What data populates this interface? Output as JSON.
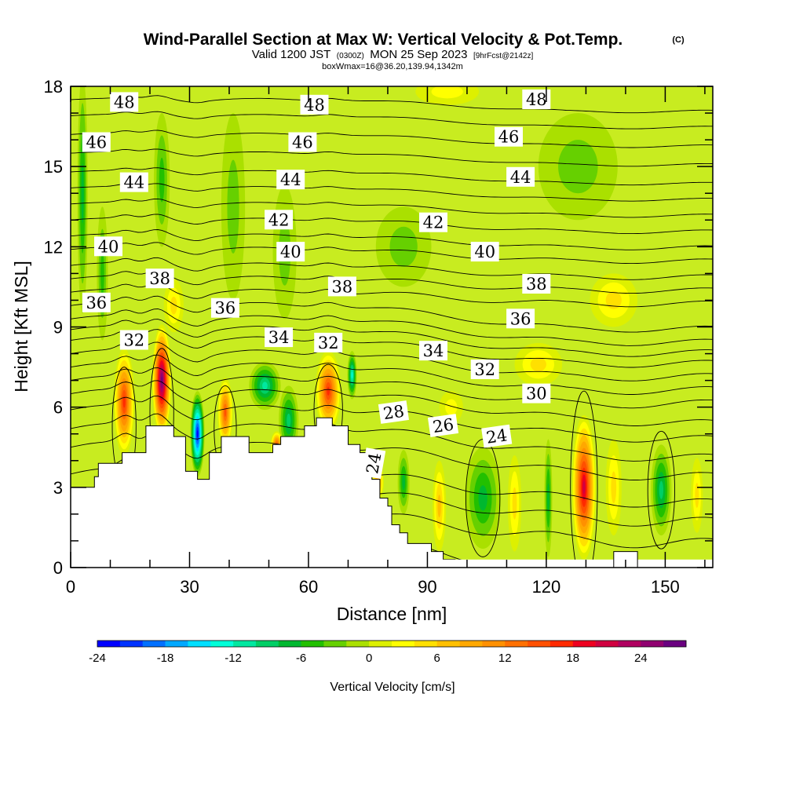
{
  "chart_data": {
    "type": "heatmap",
    "title": "Wind-Parallel Section at Max W: Vertical Velocity & Pot.Temp.",
    "title_mark": "(C)",
    "subtitle_valid": "Valid 1200 JST",
    "subtitle_utc": "(0300Z)",
    "subtitle_date": "MON 25 Sep 2023",
    "subtitle_fcst": "[9hrFcst@2142z]",
    "subtitle_box": "boxWmax=16@36.20,139.94,1342m",
    "xlabel": "Distance [nm]",
    "ylabel": "Height [Kft MSL]",
    "xlim": [
      0,
      162
    ],
    "ylim": [
      0,
      18
    ],
    "x_ticks": [
      0,
      30,
      60,
      90,
      120,
      150
    ],
    "y_ticks": [
      0,
      3,
      6,
      9,
      12,
      15,
      18
    ],
    "colorbar": {
      "label": "Vertical Velocity [cm/s]",
      "min": -24,
      "max": 28,
      "step": 2,
      "tick_values": [
        -24,
        -18,
        -12,
        -6,
        0,
        6,
        12,
        18,
        24
      ],
      "colors": [
        "#0000ff",
        "#0033ff",
        "#0070ff",
        "#00a8ff",
        "#00dfff",
        "#00ffd8",
        "#00e8a0",
        "#00cf66",
        "#00b830",
        "#22c000",
        "#66d000",
        "#aae000",
        "#ddf000",
        "#ffff00",
        "#ffe000",
        "#ffc000",
        "#ffa800",
        "#ff9000",
        "#ff7000",
        "#ff5000",
        "#ff2a00",
        "#ee0020",
        "#d00040",
        "#b00060",
        "#900070",
        "#6a0080"
      ]
    },
    "w_features": [
      {
        "x": 13.5,
        "y": 6.2,
        "rx": 2.6,
        "ry": 2.0,
        "w": 17
      },
      {
        "x": 23,
        "y": 7.0,
        "rx": 2.4,
        "ry": 2.1,
        "w": 27
      },
      {
        "x": 32,
        "y": 5.0,
        "rx": 1.8,
        "ry": 1.6,
        "w": -22
      },
      {
        "x": 39,
        "y": 5.8,
        "rx": 1.9,
        "ry": 1.3,
        "w": 15
      },
      {
        "x": 49,
        "y": 6.8,
        "rx": 4.0,
        "ry": 0.9,
        "w": -11
      },
      {
        "x": 55,
        "y": 5.5,
        "rx": 2.5,
        "ry": 1.3,
        "w": -8
      },
      {
        "x": 52,
        "y": 4.6,
        "rx": 1.5,
        "ry": 0.5,
        "w": 14
      },
      {
        "x": 65,
        "y": 6.6,
        "rx": 3.2,
        "ry": 1.5,
        "w": 17
      },
      {
        "x": 71,
        "y": 7.2,
        "rx": 1.2,
        "ry": 0.9,
        "w": -12
      },
      {
        "x": 77.5,
        "y": 3.2,
        "rx": 1.5,
        "ry": 0.7,
        "w": 10
      },
      {
        "x": 84,
        "y": 3.2,
        "rx": 1.5,
        "ry": 1.2,
        "w": -6
      },
      {
        "x": 93,
        "y": 2.3,
        "rx": 1.7,
        "ry": 1.7,
        "w": 6
      },
      {
        "x": 104,
        "y": 2.6,
        "rx": 4.5,
        "ry": 1.9,
        "w": -7
      },
      {
        "x": 112,
        "y": 2.4,
        "rx": 1.7,
        "ry": 1.8,
        "w": 5
      },
      {
        "x": 120.5,
        "y": 2.6,
        "rx": 1.0,
        "ry": 2.2,
        "w": -7
      },
      {
        "x": 129.5,
        "y": 3.0,
        "rx": 3.0,
        "ry": 2.7,
        "w": 21
      },
      {
        "x": 137,
        "y": 3.0,
        "rx": 2.0,
        "ry": 1.8,
        "w": 4
      },
      {
        "x": 149,
        "y": 2.9,
        "rx": 2.6,
        "ry": 1.7,
        "w": -9
      },
      {
        "x": 158,
        "y": 2.7,
        "rx": 1.5,
        "ry": 1.4,
        "w": 5
      },
      {
        "x": 3,
        "y": 14.0,
        "rx": 1.3,
        "ry": 4.5,
        "w": -6
      },
      {
        "x": 8,
        "y": 11.0,
        "rx": 1.4,
        "ry": 2.5,
        "w": -4
      },
      {
        "x": 23,
        "y": 14.5,
        "rx": 2.0,
        "ry": 2.5,
        "w": -4
      },
      {
        "x": 26,
        "y": 9.8,
        "rx": 2.5,
        "ry": 1.0,
        "w": 5
      },
      {
        "x": 41,
        "y": 13.5,
        "rx": 3.0,
        "ry": 3.5,
        "w": -3
      },
      {
        "x": 54,
        "y": 11.8,
        "rx": 3.0,
        "ry": 2.5,
        "w": -3
      },
      {
        "x": 84,
        "y": 12.0,
        "rx": 7.0,
        "ry": 1.5,
        "w": -3
      },
      {
        "x": 128,
        "y": 15.0,
        "rx": 10.0,
        "ry": 2.0,
        "w": -3
      },
      {
        "x": 137,
        "y": 10.0,
        "rx": 6.0,
        "ry": 1.0,
        "w": 4
      },
      {
        "x": 118,
        "y": 7.6,
        "rx": 6.0,
        "ry": 0.8,
        "w": 4
      },
      {
        "x": 96,
        "y": 6.0,
        "rx": 3.0,
        "ry": 0.6,
        "w": 3
      },
      {
        "x": 95,
        "y": 17.8,
        "rx": 8.0,
        "ry": 0.5,
        "w": 3
      }
    ],
    "theta_contour_base": [
      {
        "theta": 22,
        "y_start": 0.9
      },
      {
        "theta": 23,
        "y_start": 2.0
      },
      {
        "theta": 24,
        "y_start": 2.8
      },
      {
        "theta": 25,
        "y_start": 3.5
      },
      {
        "theta": 26,
        "y_start": 4.5
      },
      {
        "theta": 27,
        "y_start": 5.2
      },
      {
        "theta": 28,
        "y_start": 5.9
      },
      {
        "theta": 29,
        "y_start": 6.5
      },
      {
        "theta": 30,
        "y_start": 7.0
      },
      {
        "theta": 31,
        "y_start": 7.5
      },
      {
        "theta": 32,
        "y_start": 8.0
      },
      {
        "theta": 33,
        "y_start": 8.5
      },
      {
        "theta": 34,
        "y_start": 8.9
      },
      {
        "theta": 35,
        "y_start": 9.3
      },
      {
        "theta": 36,
        "y_start": 9.8
      },
      {
        "theta": 37,
        "y_start": 10.3
      },
      {
        "theta": 38,
        "y_start": 10.8
      },
      {
        "theta": 39,
        "y_start": 11.3
      },
      {
        "theta": 40,
        "y_start": 11.9
      },
      {
        "theta": 41,
        "y_start": 12.4
      },
      {
        "theta": 42,
        "y_start": 13.0
      },
      {
        "theta": 43,
        "y_start": 13.6
      },
      {
        "theta": 44,
        "y_start": 14.2
      },
      {
        "theta": 45,
        "y_start": 14.8
      },
      {
        "theta": 46,
        "y_start": 15.5
      },
      {
        "theta": 47,
        "y_start": 16.2
      },
      {
        "theta": 48,
        "y_start": 16.9
      },
      {
        "theta": 49,
        "y_start": 17.5
      }
    ],
    "theta_labels": [
      {
        "text": "48",
        "x": 13.5,
        "y": 17.4
      },
      {
        "text": "48",
        "x": 61.5,
        "y": 17.3
      },
      {
        "text": "48",
        "x": 117.5,
        "y": 17.5
      },
      {
        "text": "46",
        "x": 6.5,
        "y": 15.9
      },
      {
        "text": "46",
        "x": 58.5,
        "y": 15.9
      },
      {
        "text": "46",
        "x": 110.5,
        "y": 16.1
      },
      {
        "text": "44",
        "x": 16,
        "y": 14.4
      },
      {
        "text": "44",
        "x": 55.5,
        "y": 14.5
      },
      {
        "text": "44",
        "x": 113.5,
        "y": 14.6
      },
      {
        "text": "42",
        "x": 52.5,
        "y": 13.0
      },
      {
        "text": "42",
        "x": 91.5,
        "y": 12.9
      },
      {
        "text": "40",
        "x": 9.5,
        "y": 12.0
      },
      {
        "text": "40",
        "x": 55.5,
        "y": 11.8
      },
      {
        "text": "40",
        "x": 104.5,
        "y": 11.8
      },
      {
        "text": "38",
        "x": 22.5,
        "y": 10.8
      },
      {
        "text": "38",
        "x": 68.5,
        "y": 10.5
      },
      {
        "text": "38",
        "x": 117.5,
        "y": 10.6
      },
      {
        "text": "36",
        "x": 6.5,
        "y": 9.9
      },
      {
        "text": "36",
        "x": 39,
        "y": 9.7
      },
      {
        "text": "36",
        "x": 113.5,
        "y": 9.3
      },
      {
        "text": "32",
        "x": 16,
        "y": 8.5
      },
      {
        "text": "34",
        "x": 52.5,
        "y": 8.6
      },
      {
        "text": "32",
        "x": 65,
        "y": 8.4
      },
      {
        "text": "34",
        "x": 91.5,
        "y": 8.1
      },
      {
        "text": "32",
        "x": 104.5,
        "y": 7.4
      },
      {
        "text": "30",
        "x": 117.5,
        "y": 6.5
      },
      {
        "text": "28",
        "x": 81.5,
        "y": 5.8
      },
      {
        "text": "26",
        "x": 94,
        "y": 5.3
      },
      {
        "text": "24",
        "x": 107.5,
        "y": 4.9
      },
      {
        "text": "24",
        "x": 76.5,
        "y": 3.9
      }
    ],
    "terrain": [
      [
        0,
        3
      ],
      [
        6,
        3
      ],
      [
        6,
        3.4
      ],
      [
        7,
        3.4
      ],
      [
        7,
        3.9
      ],
      [
        13,
        3.9
      ],
      [
        13,
        4.3
      ],
      [
        19,
        4.3
      ],
      [
        19,
        5.3
      ],
      [
        26,
        5.3
      ],
      [
        26,
        4.9
      ],
      [
        29,
        4.9
      ],
      [
        29,
        3.6
      ],
      [
        32,
        3.6
      ],
      [
        32,
        3.3
      ],
      [
        35,
        3.3
      ],
      [
        35,
        4.3
      ],
      [
        38,
        4.3
      ],
      [
        38,
        4.9
      ],
      [
        45,
        4.9
      ],
      [
        45,
        4.3
      ],
      [
        51,
        4.3
      ],
      [
        51,
        4.6
      ],
      [
        53,
        4.6
      ],
      [
        53,
        4.9
      ],
      [
        59,
        4.9
      ],
      [
        59,
        5.3
      ],
      [
        62,
        5.3
      ],
      [
        62,
        5.6
      ],
      [
        66,
        5.6
      ],
      [
        66,
        5.3
      ],
      [
        70,
        5.3
      ],
      [
        70,
        4.6
      ],
      [
        73,
        4.6
      ],
      [
        73,
        4.3
      ],
      [
        76,
        4.3
      ],
      [
        76,
        3.3
      ],
      [
        78,
        3.3
      ],
      [
        78,
        2.6
      ],
      [
        80,
        2.6
      ],
      [
        80,
        2.3
      ],
      [
        81,
        2.3
      ],
      [
        81,
        1.6
      ],
      [
        83,
        1.6
      ],
      [
        83,
        1.3
      ],
      [
        85,
        1.3
      ],
      [
        85,
        0.9
      ],
      [
        91,
        0.9
      ],
      [
        91,
        0.6
      ],
      [
        94,
        0.6
      ],
      [
        94,
        0.3
      ],
      [
        97,
        0.3
      ],
      [
        97,
        0
      ],
      [
        0,
        0
      ]
    ],
    "terrain_low": [
      [
        0,
        0.3
      ],
      [
        162,
        0.3
      ]
    ],
    "terrain_bump": [
      [
        137,
        0.3
      ],
      [
        137,
        0.6
      ],
      [
        143,
        0.6
      ],
      [
        143,
        0.3
      ]
    ]
  }
}
